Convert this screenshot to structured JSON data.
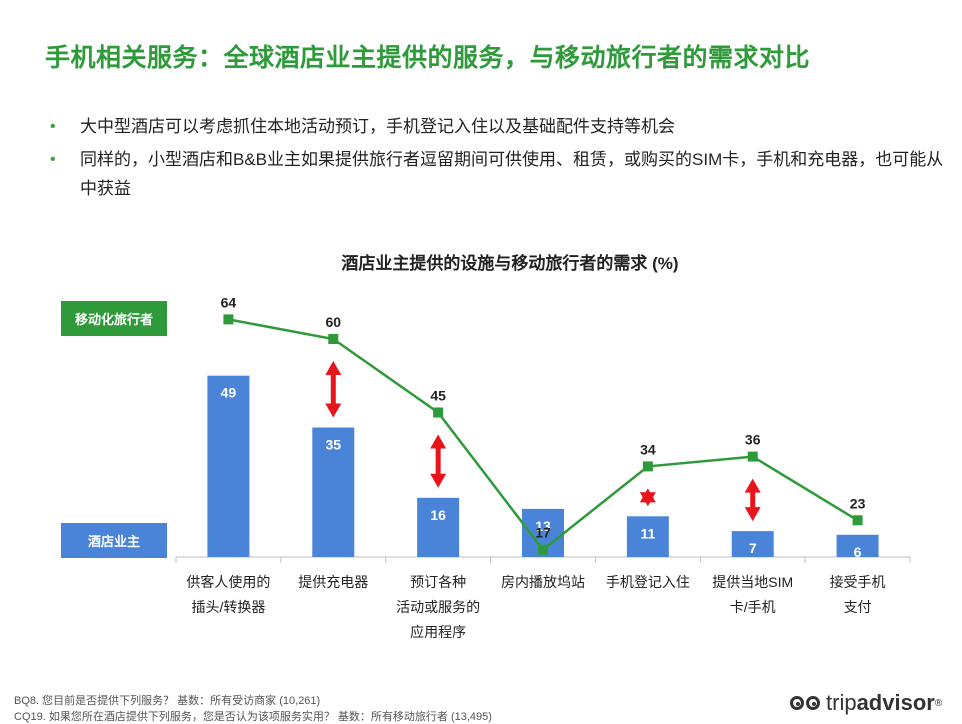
{
  "title": "手机相关服务：全球酒店业主提供的服务，与移动旅行者的需求对比",
  "bullets": [
    "大中型酒店可以考虑抓住本地活动预订，手机登记入住以及基础配件支持等机会",
    "同样的，小型酒店和B&B业主如果提供旅行者逗留期间可供使用、租赁，或购买的SIM卡，手机和充电器，也可能从中获益"
  ],
  "chart_data": {
    "type": "bar",
    "title": "酒店业主提供的设施与移动旅行者的需求 (%)",
    "categories": [
      [
        "供客人使用的",
        "插头/转换器"
      ],
      [
        "提供充电器"
      ],
      [
        "预订各种",
        "活动或服务的",
        "应用程序"
      ],
      [
        "房内播放坞站"
      ],
      [
        "手机登记入住"
      ],
      [
        "提供当地SIM",
        "卡/手机"
      ],
      [
        "接受手机",
        "支付"
      ]
    ],
    "series": [
      {
        "name": "酒店业主",
        "type": "bar",
        "color": "#4a84d8",
        "values": [
          49,
          35,
          16,
          13,
          11,
          7,
          6
        ]
      },
      {
        "name": "移动化旅行者",
        "type": "line",
        "color": "#2e9a3a",
        "values": [
          64,
          60,
          45,
          17,
          34,
          36,
          23
        ]
      }
    ],
    "gap_arrows_at": [
      1,
      2,
      4,
      5
    ],
    "arrow_color": "#e8141c",
    "ylim": [
      0,
      64
    ]
  },
  "legend": {
    "traveler": "移动化旅行者",
    "hotel": "酒店业主"
  },
  "footnotes": [
    "BQ8.  您目前是否提供下列服务？  基数：所有受访商家 (10,261)",
    "CQ19. 如果您所在酒店提供下列服务，您是否认为该项服务实用？  基数：所有移动旅行者 (13,495)"
  ],
  "logo": {
    "trip": "trip",
    "advisor": "advisor",
    "mark": "®"
  }
}
